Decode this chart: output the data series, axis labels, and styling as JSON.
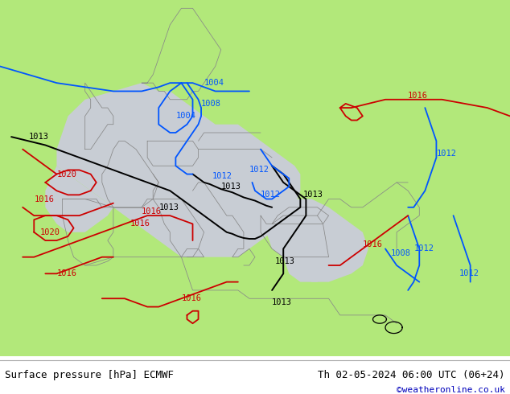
{
  "title_left": "Surface pressure [hPa] ECMWF",
  "title_right": "Th 02-05-2024 06:00 UTC (06+24)",
  "credit": "©weatheronline.co.uk",
  "bg_land_color": "#b2e87a",
  "low_pressure_color": "#c8cdd4",
  "border_color": "#888888",
  "bottom_bar_color": "#ffffff",
  "title_fontsize": 9,
  "credit_fontsize": 8,
  "credit_color": "#0000bb",
  "isobar_black_color": "#000000",
  "isobar_blue_color": "#0055ff",
  "isobar_red_color": "#cc0000",
  "label_fontsize": 7.5,
  "map_xlim": [
    -20,
    70
  ],
  "map_ylim": [
    25,
    68
  ]
}
